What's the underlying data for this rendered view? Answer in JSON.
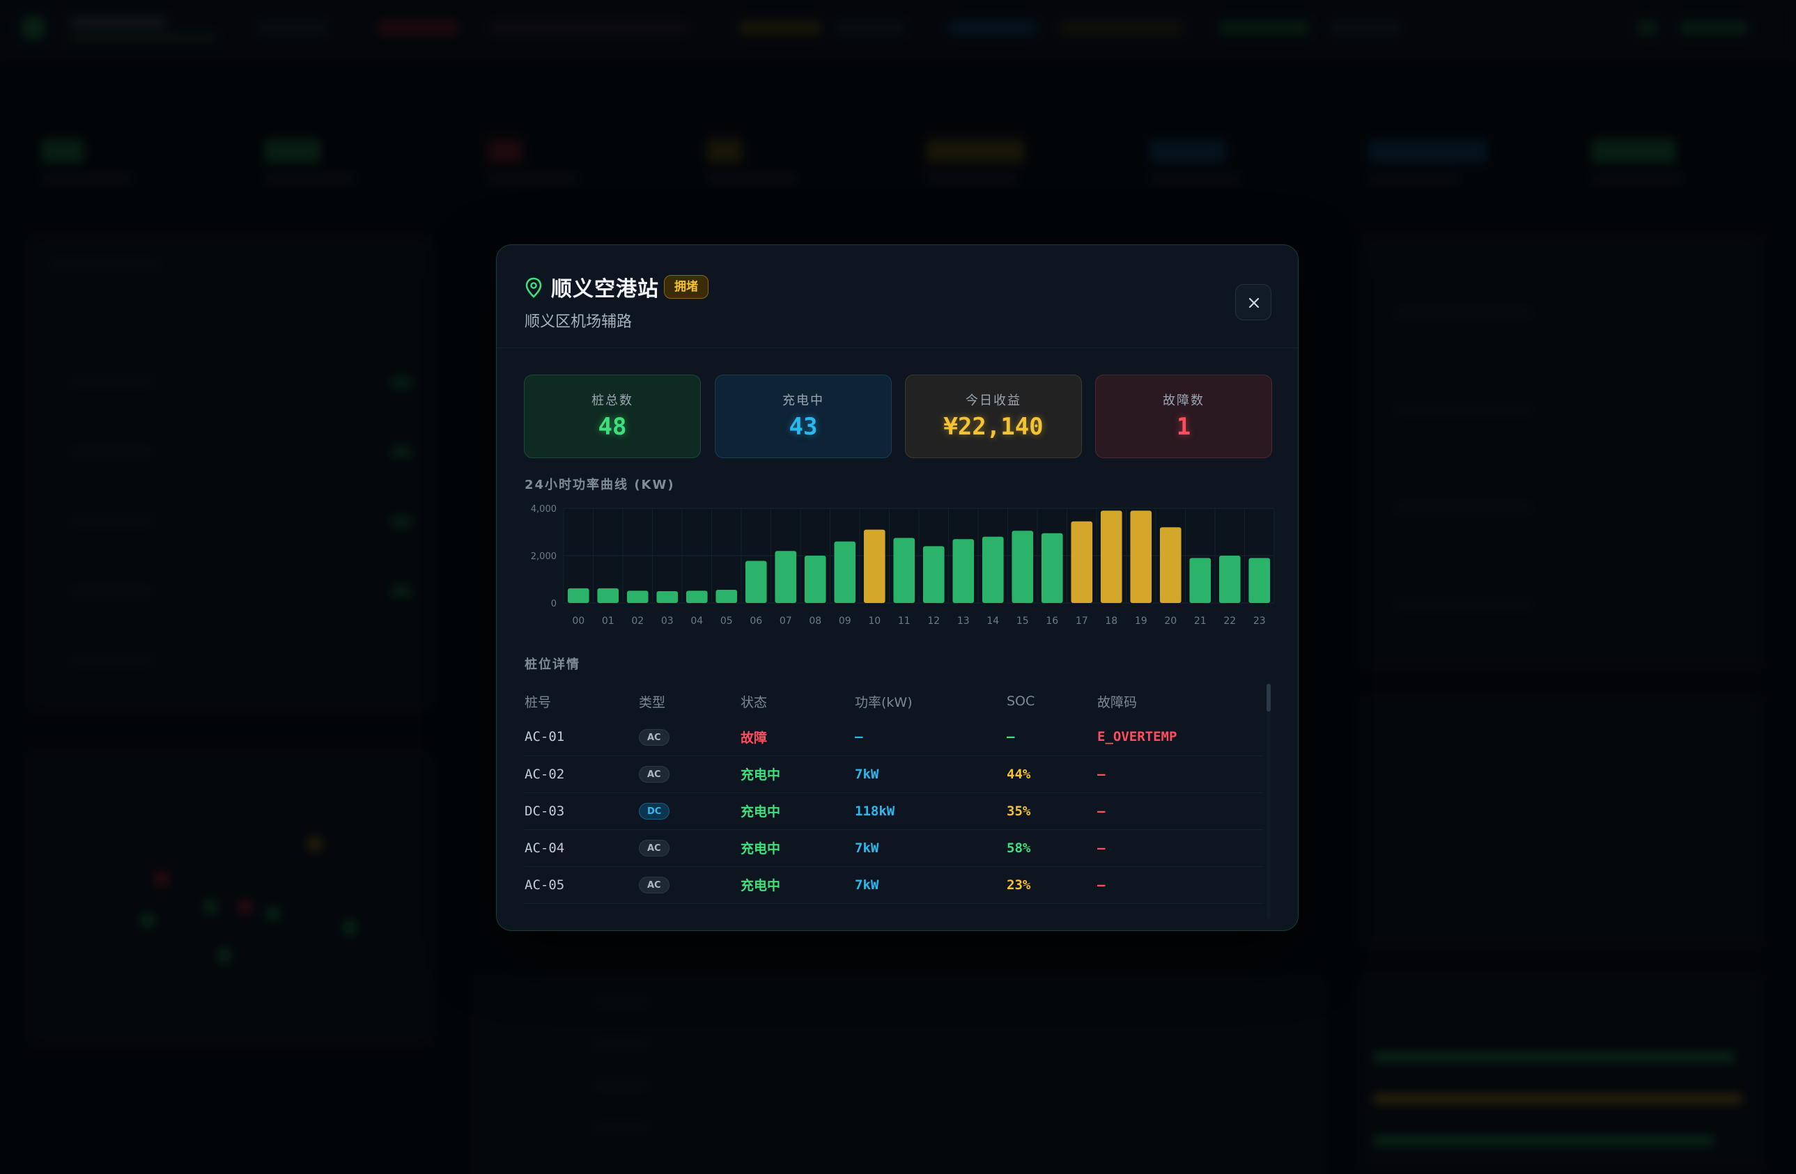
{
  "modal": {
    "title": "顺义空港站",
    "status_badge": "拥堵",
    "address": "顺义区机场辅路",
    "close_icon": "close-icon",
    "pin_icon": "map-pin-icon"
  },
  "stats": [
    {
      "label": "桩总数",
      "value": "48",
      "color": "#3ee07b"
    },
    {
      "label": "充电中",
      "value": "43",
      "color": "#2bb8ef"
    },
    {
      "label": "今日收益",
      "value": "¥22,140",
      "color": "#f5c331"
    },
    {
      "label": "故障数",
      "value": "1",
      "color": "#ff4d5f"
    }
  ],
  "chart_section_title": "24小时功率曲线 (KW)",
  "chart_data": {
    "type": "bar",
    "categories": [
      "00",
      "01",
      "02",
      "03",
      "04",
      "05",
      "06",
      "07",
      "08",
      "09",
      "10",
      "11",
      "12",
      "13",
      "14",
      "15",
      "16",
      "17",
      "18",
      "19",
      "20",
      "21",
      "22",
      "23"
    ],
    "values": [
      620,
      620,
      520,
      500,
      520,
      560,
      1780,
      2200,
      2000,
      2600,
      3100,
      2750,
      2400,
      2700,
      2800,
      3050,
      2950,
      3450,
      3900,
      3900,
      3200,
      1900,
      2000,
      1900
    ],
    "highlight": [
      false,
      false,
      false,
      false,
      false,
      false,
      false,
      false,
      false,
      false,
      true,
      false,
      false,
      false,
      false,
      false,
      false,
      true,
      true,
      true,
      true,
      false,
      false,
      false
    ],
    "ylim": [
      0,
      4000
    ],
    "yticks": [
      "0",
      "2,000",
      "4,000"
    ],
    "colors": {
      "normal": "#2bb36a",
      "peak": "#d4a62a"
    },
    "grid": true
  },
  "table": {
    "title": "桩位详情",
    "headers": [
      "桩号",
      "类型",
      "状态",
      "功率(kW)",
      "SOC",
      "故障码"
    ],
    "rows": [
      {
        "id": "AC-01",
        "type": "AC",
        "status": "故障",
        "power": "—",
        "soc": "—",
        "fault": "E_OVERTEMP"
      },
      {
        "id": "AC-02",
        "type": "AC",
        "status": "充电中",
        "power": "7kW",
        "soc": "44%",
        "fault": "—"
      },
      {
        "id": "DC-03",
        "type": "DC",
        "status": "充电中",
        "power": "118kW",
        "soc": "35%",
        "fault": "—"
      },
      {
        "id": "AC-04",
        "type": "AC",
        "status": "充电中",
        "power": "7kW",
        "soc": "58%",
        "fault": "—"
      },
      {
        "id": "AC-05",
        "type": "AC",
        "status": "充电中",
        "power": "7kW",
        "soc": "23%",
        "fault": "—"
      }
    ]
  }
}
